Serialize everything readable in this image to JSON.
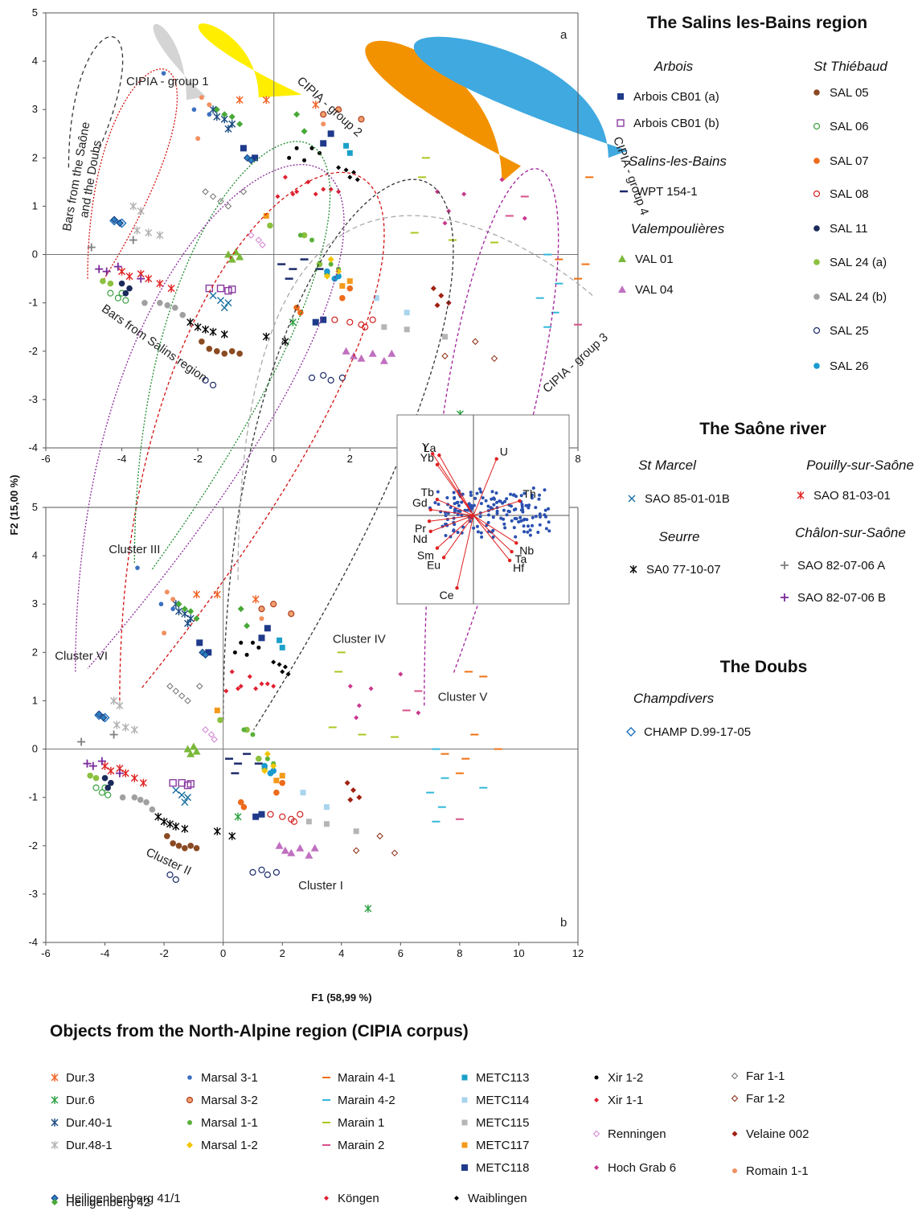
{
  "chart_data": {
    "type": "scatter",
    "xlabel": "F1 (58,99 %)",
    "ylabel": "F2 (15,00 %)",
    "xlim": [
      -6,
      12
    ],
    "ylim": [
      -4,
      5
    ],
    "x_ticks": [
      "-6",
      "-4",
      "-2",
      "0",
      "2",
      "4",
      "6",
      "8",
      "10",
      "12"
    ],
    "y_ticks": [
      "-4",
      "-3",
      "-2",
      "-1",
      "0",
      "1",
      "2",
      "3",
      "4",
      "5"
    ],
    "grid": false,
    "panels": [
      {
        "label": "a",
        "regions": [
          {
            "label": "CIPIA - group 1",
            "color": "#d0d0d0"
          },
          {
            "label": "CIPIA - group 2",
            "color": "#ffee00"
          },
          {
            "label": "CIPIA - group 3",
            "color": "#f39200"
          },
          {
            "label": "CIPIA - group 4",
            "color": "#3fa9e0"
          },
          {
            "label": "Bars from the Saône and the Doubs",
            "color": "#333333"
          },
          {
            "label": "Bars from Salins region",
            "color": "#d41010"
          }
        ]
      },
      {
        "label": "b",
        "regions": [
          {
            "label": "Cluster I",
            "color": "#333333"
          },
          {
            "label": "Cluster II",
            "color": "#d41010"
          },
          {
            "label": "Cluster III",
            "color": "#1e8a2e"
          },
          {
            "label": "Cluster IV",
            "color": "#aaaaaa"
          },
          {
            "label": "Cluster V",
            "color": "#a0209a"
          },
          {
            "label": "Cluster VI",
            "color": "#8a2a9a"
          }
        ]
      }
    ],
    "loadings_inset": {
      "variables": [
        {
          "name": "Y",
          "x": -0.62,
          "y": 0.85
        },
        {
          "name": "La",
          "x": -0.52,
          "y": 0.83
        },
        {
          "name": "Yb",
          "x": -0.55,
          "y": 0.7
        },
        {
          "name": "U",
          "x": 0.35,
          "y": 0.78
        },
        {
          "name": "Tb",
          "x": -0.55,
          "y": 0.22
        },
        {
          "name": "Gd",
          "x": -0.65,
          "y": 0.08
        },
        {
          "name": "Th",
          "x": 0.7,
          "y": 0.2
        },
        {
          "name": "Pr",
          "x": -0.67,
          "y": -0.08
        },
        {
          "name": "Nd",
          "x": -0.65,
          "y": -0.22
        },
        {
          "name": "Nb",
          "x": 0.65,
          "y": -0.38
        },
        {
          "name": "Ta",
          "x": 0.58,
          "y": -0.5
        },
        {
          "name": "Hf",
          "x": 0.55,
          "y": -0.62
        },
        {
          "name": "Sm",
          "x": -0.55,
          "y": -0.45
        },
        {
          "name": "Eu",
          "x": -0.45,
          "y": -0.58
        },
        {
          "name": "Ce",
          "x": -0.25,
          "y": -1.0
        }
      ]
    },
    "series": [
      {
        "name": "Arbois CB01 (a)",
        "points": [
          [
            1.5,
            2.5
          ],
          [
            1.3,
            2.3
          ]
        ]
      },
      {
        "name": "Arbois CB01 (b)",
        "points": [
          [
            -1.7,
            -0.7
          ],
          [
            -1.4,
            -0.7
          ],
          [
            -1.2,
            -0.75
          ],
          [
            -1.1,
            -0.72
          ]
        ]
      },
      {
        "name": "WPT 154-1",
        "points": [
          [
            0.2,
            -0.2
          ],
          [
            0.5,
            -0.3
          ],
          [
            0.8,
            -0.1
          ],
          [
            1.2,
            -0.3
          ],
          [
            0.4,
            -0.5
          ]
        ]
      },
      {
        "name": "VAL 01",
        "points": [
          [
            -1.2,
            0.0
          ],
          [
            -1.0,
            0.05
          ],
          [
            -0.9,
            -0.05
          ],
          [
            -1.1,
            -0.1
          ]
        ]
      },
      {
        "name": "VAL 04",
        "points": [
          [
            1.9,
            -2.0
          ],
          [
            2.1,
            -2.1
          ],
          [
            2.3,
            -2.15
          ],
          [
            2.6,
            -2.05
          ],
          [
            2.9,
            -2.2
          ],
          [
            3.1,
            -2.05
          ]
        ]
      },
      {
        "name": "SAL 05",
        "points": [
          [
            -1.9,
            -1.8
          ],
          [
            -1.7,
            -1.95
          ],
          [
            -1.5,
            -2.0
          ],
          [
            -1.3,
            -2.05
          ],
          [
            -0.9,
            -2.05
          ],
          [
            -1.1,
            -2.0
          ]
        ]
      },
      {
        "name": "SAL 06",
        "points": [
          [
            -4.3,
            -0.8
          ],
          [
            -4.1,
            -0.9
          ],
          [
            -3.9,
            -0.95
          ],
          [
            -4.0,
            -0.8
          ]
        ]
      },
      {
        "name": "SAL 07",
        "points": [
          [
            0.6,
            -1.1
          ],
          [
            0.7,
            -1.2
          ],
          [
            1.8,
            -0.9
          ],
          [
            2.0,
            -0.7
          ]
        ]
      },
      {
        "name": "SAL 08",
        "points": [
          [
            1.6,
            -1.35
          ],
          [
            2.0,
            -1.4
          ],
          [
            2.3,
            -1.45
          ],
          [
            2.6,
            -1.35
          ],
          [
            2.4,
            -1.5
          ]
        ]
      },
      {
        "name": "SAL 11",
        "points": [
          [
            -4.0,
            -0.6
          ],
          [
            -3.8,
            -0.7
          ],
          [
            -3.9,
            -0.8
          ]
        ]
      },
      {
        "name": "SAL 24 (a)",
        "points": [
          [
            -4.5,
            -0.55
          ],
          [
            -4.3,
            -0.6
          ],
          [
            1.2,
            -0.2
          ],
          [
            1.4,
            -0.4
          ],
          [
            1.6,
            -0.5
          ],
          [
            -0.1,
            0.6
          ],
          [
            0.8,
            0.4
          ]
        ]
      },
      {
        "name": "SAL 24 (b)",
        "points": [
          [
            -3.0,
            -1.0
          ],
          [
            -2.8,
            -1.05
          ],
          [
            -2.6,
            -1.1
          ],
          [
            -3.4,
            -1.0
          ],
          [
            -2.4,
            -1.25
          ]
        ]
      },
      {
        "name": "SAL 25",
        "points": [
          [
            1.0,
            -2.55
          ],
          [
            1.3,
            -2.5
          ],
          [
            1.5,
            -2.6
          ],
          [
            1.8,
            -2.55
          ],
          [
            -1.8,
            -2.6
          ],
          [
            -1.6,
            -2.7
          ]
        ]
      },
      {
        "name": "SAL 26",
        "points": [
          [
            1.6,
            -0.5
          ],
          [
            1.4,
            -0.35
          ],
          [
            1.7,
            -0.45
          ]
        ]
      },
      {
        "name": "SAO 85-01-01B",
        "points": [
          [
            -1.6,
            -0.85
          ],
          [
            -1.4,
            -0.95
          ],
          [
            -1.2,
            -1.0
          ],
          [
            -1.3,
            -1.1
          ]
        ]
      },
      {
        "name": "SAO 81-03-01",
        "points": [
          [
            -3.5,
            -0.4
          ],
          [
            -3.3,
            -0.5
          ],
          [
            -3.0,
            -0.6
          ],
          [
            -2.7,
            -0.7
          ],
          [
            -3.8,
            -0.45
          ],
          [
            -4.0,
            -0.35
          ]
        ]
      },
      {
        "name": "SA0 77-10-07",
        "points": [
          [
            -2.2,
            -1.4
          ],
          [
            -2.0,
            -1.5
          ],
          [
            -1.8,
            -1.55
          ],
          [
            -1.6,
            -1.6
          ],
          [
            -1.3,
            -1.65
          ],
          [
            -0.2,
            -1.7
          ],
          [
            0.3,
            -1.8
          ]
        ]
      },
      {
        "name": "SAO 82-07-06 A",
        "points": [
          [
            -4.8,
            0.15
          ],
          [
            -3.7,
            0.3
          ]
        ]
      },
      {
        "name": "SAO 82-07-06 B",
        "points": [
          [
            -4.6,
            -0.3
          ],
          [
            -4.4,
            -0.35
          ],
          [
            -4.1,
            -0.25
          ],
          [
            -3.5,
            -0.5
          ]
        ]
      },
      {
        "name": "CHAMP D.99-17-05",
        "points": [
          [
            -4.2,
            0.7
          ],
          [
            -4.0,
            0.65
          ]
        ]
      },
      {
        "name": "Dur.3",
        "points": [
          [
            -0.9,
            3.2
          ],
          [
            -0.2,
            3.2
          ],
          [
            1.1,
            3.1
          ]
        ]
      },
      {
        "name": "Dur.6",
        "points": [
          [
            4.9,
            -3.3
          ],
          [
            0.5,
            -1.4
          ]
        ]
      },
      {
        "name": "Dur.40-1",
        "points": [
          [
            -1.6,
            3.0
          ],
          [
            -1.5,
            2.85
          ],
          [
            -1.3,
            2.8
          ],
          [
            -1.1,
            2.7
          ],
          [
            -1.2,
            2.6
          ]
        ]
      },
      {
        "name": "Dur.48-1",
        "points": [
          [
            -3.7,
            1.0
          ],
          [
            -3.5,
            0.9
          ],
          [
            -3.3,
            0.45
          ],
          [
            -3.0,
            0.4
          ],
          [
            -3.6,
            0.5
          ]
        ]
      },
      {
        "name": "Marsal 3-1",
        "points": [
          [
            -2.9,
            3.75
          ],
          [
            -2.1,
            3.0
          ],
          [
            -1.7,
            2.9
          ]
        ]
      },
      {
        "name": "Marsal 3-2",
        "points": [
          [
            1.7,
            3.0
          ],
          [
            2.3,
            2.8
          ],
          [
            1.3,
            2.9
          ]
        ]
      },
      {
        "name": "Marsal 1-1",
        "points": [
          [
            0.7,
            0.4
          ],
          [
            1.0,
            0.3
          ],
          [
            1.5,
            -0.2
          ],
          [
            1.7,
            -0.3
          ]
        ]
      },
      {
        "name": "Marsal 1-2",
        "points": [
          [
            1.5,
            -0.1
          ],
          [
            1.7,
            -0.35
          ],
          [
            1.4,
            -0.45
          ]
        ]
      },
      {
        "name": "Marain 4-1",
        "points": [
          [
            8.3,
            1.6
          ],
          [
            8.8,
            1.5
          ],
          [
            8.5,
            0.3
          ],
          [
            8.2,
            -0.2
          ],
          [
            9.3,
            0.0
          ],
          [
            7.5,
            -0.1
          ],
          [
            8.0,
            -0.5
          ]
        ]
      },
      {
        "name": "Marain 4-2",
        "points": [
          [
            7.2,
            0.0
          ],
          [
            7.5,
            -0.6
          ],
          [
            8.8,
            -0.8
          ],
          [
            7.0,
            -0.9
          ],
          [
            7.4,
            -1.2
          ],
          [
            7.2,
            -1.5
          ]
        ]
      },
      {
        "name": "Marain 1",
        "points": [
          [
            3.7,
            0.45
          ],
          [
            4.7,
            0.3
          ],
          [
            5.8,
            0.25
          ],
          [
            4.0,
            2.0
          ],
          [
            3.9,
            1.6
          ]
        ]
      },
      {
        "name": "Marain 2",
        "points": [
          [
            6.6,
            1.2
          ],
          [
            6.2,
            0.8
          ],
          [
            8.0,
            -1.45
          ]
        ]
      },
      {
        "name": "METC113",
        "points": [
          [
            2.0,
            2.1
          ],
          [
            1.9,
            2.25
          ]
        ]
      },
      {
        "name": "METC114",
        "points": [
          [
            2.7,
            -0.9
          ],
          [
            3.5,
            -1.2
          ]
        ]
      },
      {
        "name": "METC115",
        "points": [
          [
            2.9,
            -1.5
          ],
          [
            3.5,
            -1.55
          ],
          [
            4.5,
            -1.7
          ]
        ]
      },
      {
        "name": "METC117",
        "points": [
          [
            1.8,
            -0.65
          ],
          [
            2.0,
            -0.55
          ],
          [
            -0.2,
            0.8
          ]
        ]
      },
      {
        "name": "METC118",
        "points": [
          [
            1.1,
            -1.4
          ],
          [
            1.3,
            -1.35
          ],
          [
            -0.8,
            2.2
          ],
          [
            -0.5,
            2.0
          ]
        ]
      },
      {
        "name": "Xir 1-2",
        "points": [
          [
            0.6,
            2.2
          ],
          [
            1.0,
            2.2
          ],
          [
            0.4,
            2.0
          ],
          [
            0.8,
            1.95
          ],
          [
            1.2,
            2.1
          ]
        ]
      },
      {
        "name": "Xir 1-1",
        "points": [
          [
            0.6,
            1.3
          ],
          [
            0.9,
            1.5
          ],
          [
            1.3,
            1.35
          ],
          [
            1.7,
            1.3
          ],
          [
            0.3,
            1.6
          ]
        ]
      },
      {
        "name": "Far 1-1",
        "points": [
          [
            -1.8,
            1.3
          ],
          [
            -1.6,
            1.2
          ],
          [
            -1.4,
            1.1
          ],
          [
            -1.2,
            1.0
          ],
          [
            -0.8,
            1.3
          ]
        ]
      },
      {
        "name": "Far 1-2",
        "points": [
          [
            4.5,
            -2.1
          ],
          [
            5.3,
            -1.8
          ],
          [
            5.8,
            -2.15
          ]
        ]
      },
      {
        "name": "Renningen",
        "points": [
          [
            -0.6,
            0.4
          ],
          [
            -0.4,
            0.3
          ],
          [
            -0.3,
            0.2
          ]
        ]
      },
      {
        "name": "Velaine 002",
        "points": [
          [
            4.2,
            -0.7
          ],
          [
            4.4,
            -0.85
          ],
          [
            4.6,
            -1.0
          ],
          [
            4.3,
            -1.05
          ]
        ]
      },
      {
        "name": "Hoch Grab 6",
        "points": [
          [
            4.3,
            1.3
          ],
          [
            4.6,
            0.9
          ],
          [
            5.0,
            1.25
          ],
          [
            4.5,
            0.65
          ],
          [
            6.0,
            1.55
          ],
          [
            6.6,
            0.75
          ]
        ]
      },
      {
        "name": "Romain 1-1",
        "points": [
          [
            -1.9,
            3.25
          ],
          [
            -1.7,
            3.1
          ],
          [
            -2.0,
            2.4
          ],
          [
            1.3,
            2.7
          ]
        ]
      },
      {
        "name": "Heiligenbenberg 41/1",
        "points": [
          [
            -4.2,
            0.72
          ],
          [
            -4.05,
            0.65
          ],
          [
            -0.7,
            2.0
          ],
          [
            -0.6,
            1.95
          ]
        ]
      },
      {
        "name": "Heiligenberg 42",
        "points": [
          [
            -1.5,
            3.0
          ],
          [
            -1.3,
            2.9
          ],
          [
            -1.1,
            2.85
          ],
          [
            -0.9,
            2.7
          ],
          [
            0.6,
            2.9
          ],
          [
            0.8,
            2.55
          ]
        ]
      },
      {
        "name": "Köngen",
        "points": [
          [
            0.1,
            1.2
          ],
          [
            0.5,
            1.25
          ],
          [
            1.1,
            1.25
          ],
          [
            1.5,
            1.35
          ]
        ]
      },
      {
        "name": "Waiblingen",
        "points": [
          [
            1.7,
            1.8
          ],
          [
            1.9,
            1.75
          ],
          [
            2.1,
            1.7
          ],
          [
            2.2,
            1.55
          ],
          [
            2.0,
            1.6
          ]
        ]
      }
    ]
  },
  "legend_right": {
    "salins_title": "The Salins les-Bains region",
    "arbois": "Arbois",
    "st_thiebaud": "St Thiébaud",
    "salins_sub": "Salins-les-Bains",
    "valempoulieres": "Valempoulières",
    "saone_title": "The Saône river",
    "st_marcel": "St Marcel",
    "pouilly": "Pouilly-sur-Saône",
    "seurre": "Seurre",
    "chalon": "Châlon-sur-Saône",
    "doubs_title": "The Doubs",
    "champdivers": "Champdivers"
  },
  "legend_bottom": {
    "title": "Objects from the North-Alpine region (CIPIA corpus)"
  },
  "colors": {
    "red": "#e03030",
    "darkred": "#b01818",
    "navy": "#1f3a8a",
    "blue": "#2a6fba",
    "brown": "#8a4a22",
    "orange": "#ee6b1c",
    "green": "#6ab43a",
    "grey": "#9a9a9a",
    "purple": "#8a3aa0",
    "pink": "#c070c0",
    "magenta": "#c8388f",
    "teal": "#1aa0c8",
    "yellow": "#f2c500"
  }
}
